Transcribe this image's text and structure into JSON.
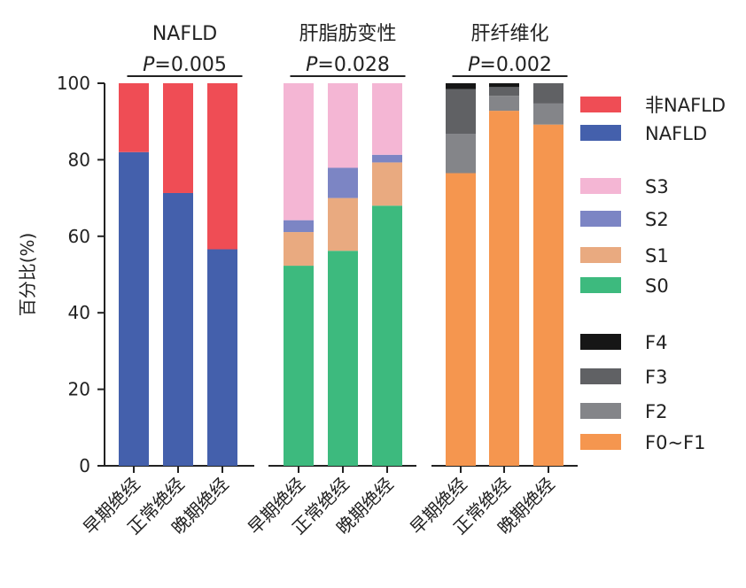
{
  "chart_data": {
    "type": "stacked-bar",
    "ylabel": "百分比(%)",
    "ylim": [
      0,
      100
    ],
    "yticks": [
      0,
      20,
      40,
      60,
      80,
      100
    ],
    "grid": false,
    "legend_placement": "right",
    "panels": [
      {
        "title": "NAFLD",
        "p_label": "P",
        "p_value": "=0.005",
        "categories": [
          "早期绝经",
          "正常绝经",
          "晚期绝经"
        ],
        "series": [
          {
            "name": "NAFLD",
            "color": "#4460ac",
            "values": [
              82,
              71.3,
              56.6
            ]
          },
          {
            "name": "非NAFLD",
            "color": "#ef4d55",
            "values": [
              18,
              28.7,
              43.4
            ]
          }
        ]
      },
      {
        "title": "肝脂肪变性",
        "p_label": "P",
        "p_value": "=0.028",
        "categories": [
          "早期绝经",
          "正常绝经",
          "晚期绝经"
        ],
        "series": [
          {
            "name": "S0",
            "color": "#3dba7e",
            "values": [
              52.3,
              56.2,
              68.0
            ]
          },
          {
            "name": "S1",
            "color": "#e9aa80",
            "values": [
              8.8,
              13.8,
              11.3
            ]
          },
          {
            "name": "S2",
            "color": "#7c85c4",
            "values": [
              3.1,
              7.9,
              2.0
            ]
          },
          {
            "name": "S3",
            "color": "#f4b6d4",
            "values": [
              35.8,
              22.1,
              18.7
            ]
          }
        ]
      },
      {
        "title": "肝纤维化",
        "p_label": "P",
        "p_value": "=0.002",
        "categories": [
          "早期绝经",
          "正常绝经",
          "晚期绝经"
        ],
        "series": [
          {
            "name": "F0~F1",
            "color": "#f5964f",
            "values": [
              76.5,
              92.8,
              89.2
            ]
          },
          {
            "name": "F2",
            "color": "#848589",
            "values": [
              10.3,
              3.9,
              5.5
            ]
          },
          {
            "name": "F3",
            "color": "#606164",
            "values": [
              11.7,
              2.3,
              5.3
            ]
          },
          {
            "name": "F4",
            "color": "#161616",
            "values": [
              1.5,
              1.0,
              0
            ]
          }
        ]
      }
    ],
    "legend": [
      {
        "name": "非NAFLD",
        "color": "#ef4d55"
      },
      {
        "name": "NAFLD",
        "color": "#4460ac"
      },
      {
        "name": "S3",
        "color": "#f4b6d4"
      },
      {
        "name": "S2",
        "color": "#7c85c4"
      },
      {
        "name": "S1",
        "color": "#e9aa80"
      },
      {
        "name": "S0",
        "color": "#3dba7e"
      },
      {
        "name": "F4",
        "color": "#161616"
      },
      {
        "name": "F3",
        "color": "#606164"
      },
      {
        "name": "F2",
        "color": "#848589"
      },
      {
        "name": "F0~F1",
        "color": "#f5964f"
      }
    ]
  }
}
